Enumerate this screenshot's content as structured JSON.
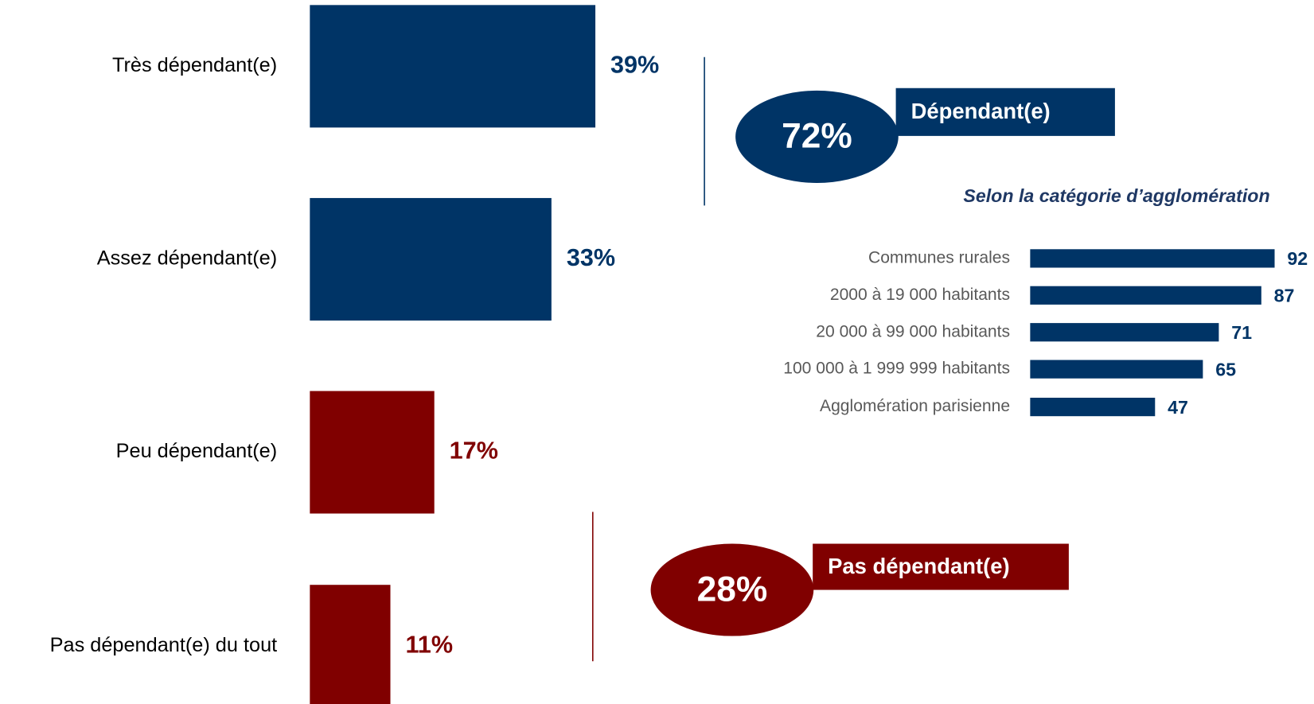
{
  "chart_data": [
    {
      "type": "hbar",
      "categories": [
        "Très dépendant(e)",
        "Assez dépendant(e)",
        "Peu dépendant(e)",
        "Pas dépendant(e) du tout"
      ],
      "values": [
        39,
        33,
        17,
        11
      ],
      "value_labels": [
        "39%",
        "33%",
        "17%",
        "11%"
      ],
      "colors": [
        "#003466",
        "#003466",
        "#800000",
        "#800000"
      ],
      "annotations": [
        {
          "name": "Dépendant(e)",
          "value": 72,
          "label": "72%",
          "color": "#003466"
        },
        {
          "name": "Pas dépendant(e)",
          "value": 28,
          "label": "28%",
          "color": "#800000"
        }
      ]
    },
    {
      "type": "hbar",
      "title": "Selon la catégorie d’agglomération",
      "categories": [
        "Communes rurales",
        "2000 à 19 000 habitants",
        "20 000 à 99 000 habitants",
        "100 000 à 1 999 999 habitants",
        "Agglomération parisienne"
      ],
      "values": [
        92,
        87,
        71,
        65,
        47
      ],
      "color": "#003466"
    }
  ]
}
